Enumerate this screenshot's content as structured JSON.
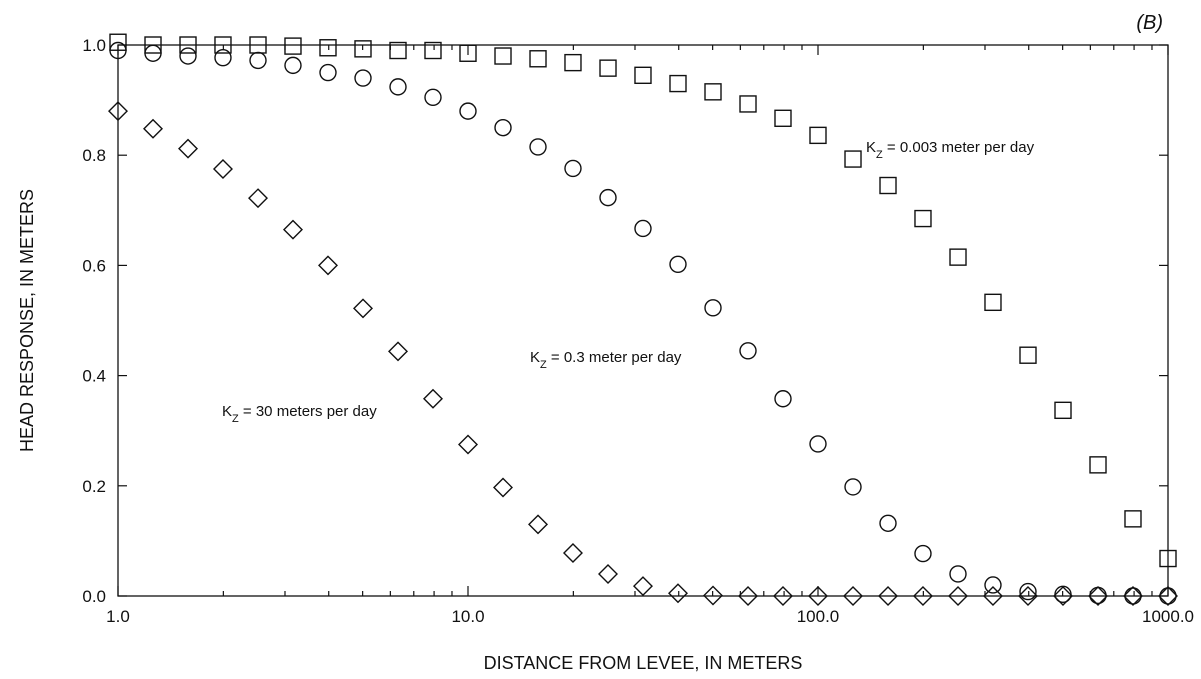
{
  "chart_data": {
    "type": "scatter",
    "panel_label": "(B)",
    "xlabel": "DISTANCE FROM LEVEE, IN METERS",
    "ylabel": "HEAD RESPONSE, IN METERS",
    "x_scale": "log",
    "xlim": [
      1,
      1000
    ],
    "ylim": [
      0,
      1
    ],
    "x_ticks": [
      1,
      10,
      100,
      1000
    ],
    "x_tick_labels": [
      "1.0",
      "10.0",
      "100.0",
      "1000.0"
    ],
    "y_ticks": [
      0,
      0.2,
      0.4,
      0.6,
      0.8,
      1.0
    ],
    "y_tick_labels": [
      "0.0",
      "0.2",
      "0.4",
      "0.6",
      "0.8",
      "1.0"
    ],
    "grid": false,
    "x": [
      1.0,
      1.259,
      1.585,
      1.995,
      2.512,
      3.162,
      3.981,
      5.012,
      6.31,
      7.943,
      10.0,
      12.59,
      15.85,
      19.95,
      25.12,
      31.62,
      39.81,
      50.12,
      63.1,
      79.43,
      100.0,
      125.9,
      158.5,
      199.5,
      251.2,
      316.2,
      398.1,
      501.2,
      631.0,
      794.3,
      1000.0
    ],
    "series": [
      {
        "marker": "square",
        "annotation": {
          "main": "K",
          "sub": "Z",
          "rest": " = 0.003 meter per day"
        },
        "values": [
          1.005,
          1.0,
          1.0,
          1.0,
          1.0,
          0.998,
          0.995,
          0.993,
          0.99,
          0.99,
          0.985,
          0.98,
          0.975,
          0.968,
          0.958,
          0.945,
          0.93,
          0.915,
          0.893,
          0.867,
          0.836,
          0.793,
          0.745,
          0.685,
          0.615,
          0.533,
          0.437,
          0.337,
          0.238,
          0.14,
          0.068
        ]
      },
      {
        "marker": "circle",
        "annotation": {
          "main": "K",
          "sub": "Z",
          "rest": " = 0.3 meter per day"
        },
        "values": [
          0.99,
          0.985,
          0.98,
          0.977,
          0.972,
          0.963,
          0.95,
          0.94,
          0.924,
          0.905,
          0.88,
          0.85,
          0.815,
          0.776,
          0.723,
          0.667,
          0.602,
          0.523,
          0.445,
          0.358,
          0.276,
          0.198,
          0.132,
          0.077,
          0.04,
          0.02,
          0.008,
          0.003,
          0.001,
          0.0,
          0.0
        ]
      },
      {
        "marker": "diamond",
        "annotation": {
          "main": "K",
          "sub": "Z",
          "rest": " = 30 meters per day"
        },
        "values": [
          0.88,
          0.848,
          0.812,
          0.775,
          0.722,
          0.665,
          0.6,
          0.522,
          0.444,
          0.358,
          0.275,
          0.197,
          0.13,
          0.078,
          0.04,
          0.018,
          0.005,
          0.001,
          0.0,
          0.0,
          0.0,
          0.0,
          0.0,
          0.0,
          0.0,
          0.0,
          0.0,
          0.0,
          0.0,
          0.0,
          0.0
        ]
      }
    ]
  }
}
